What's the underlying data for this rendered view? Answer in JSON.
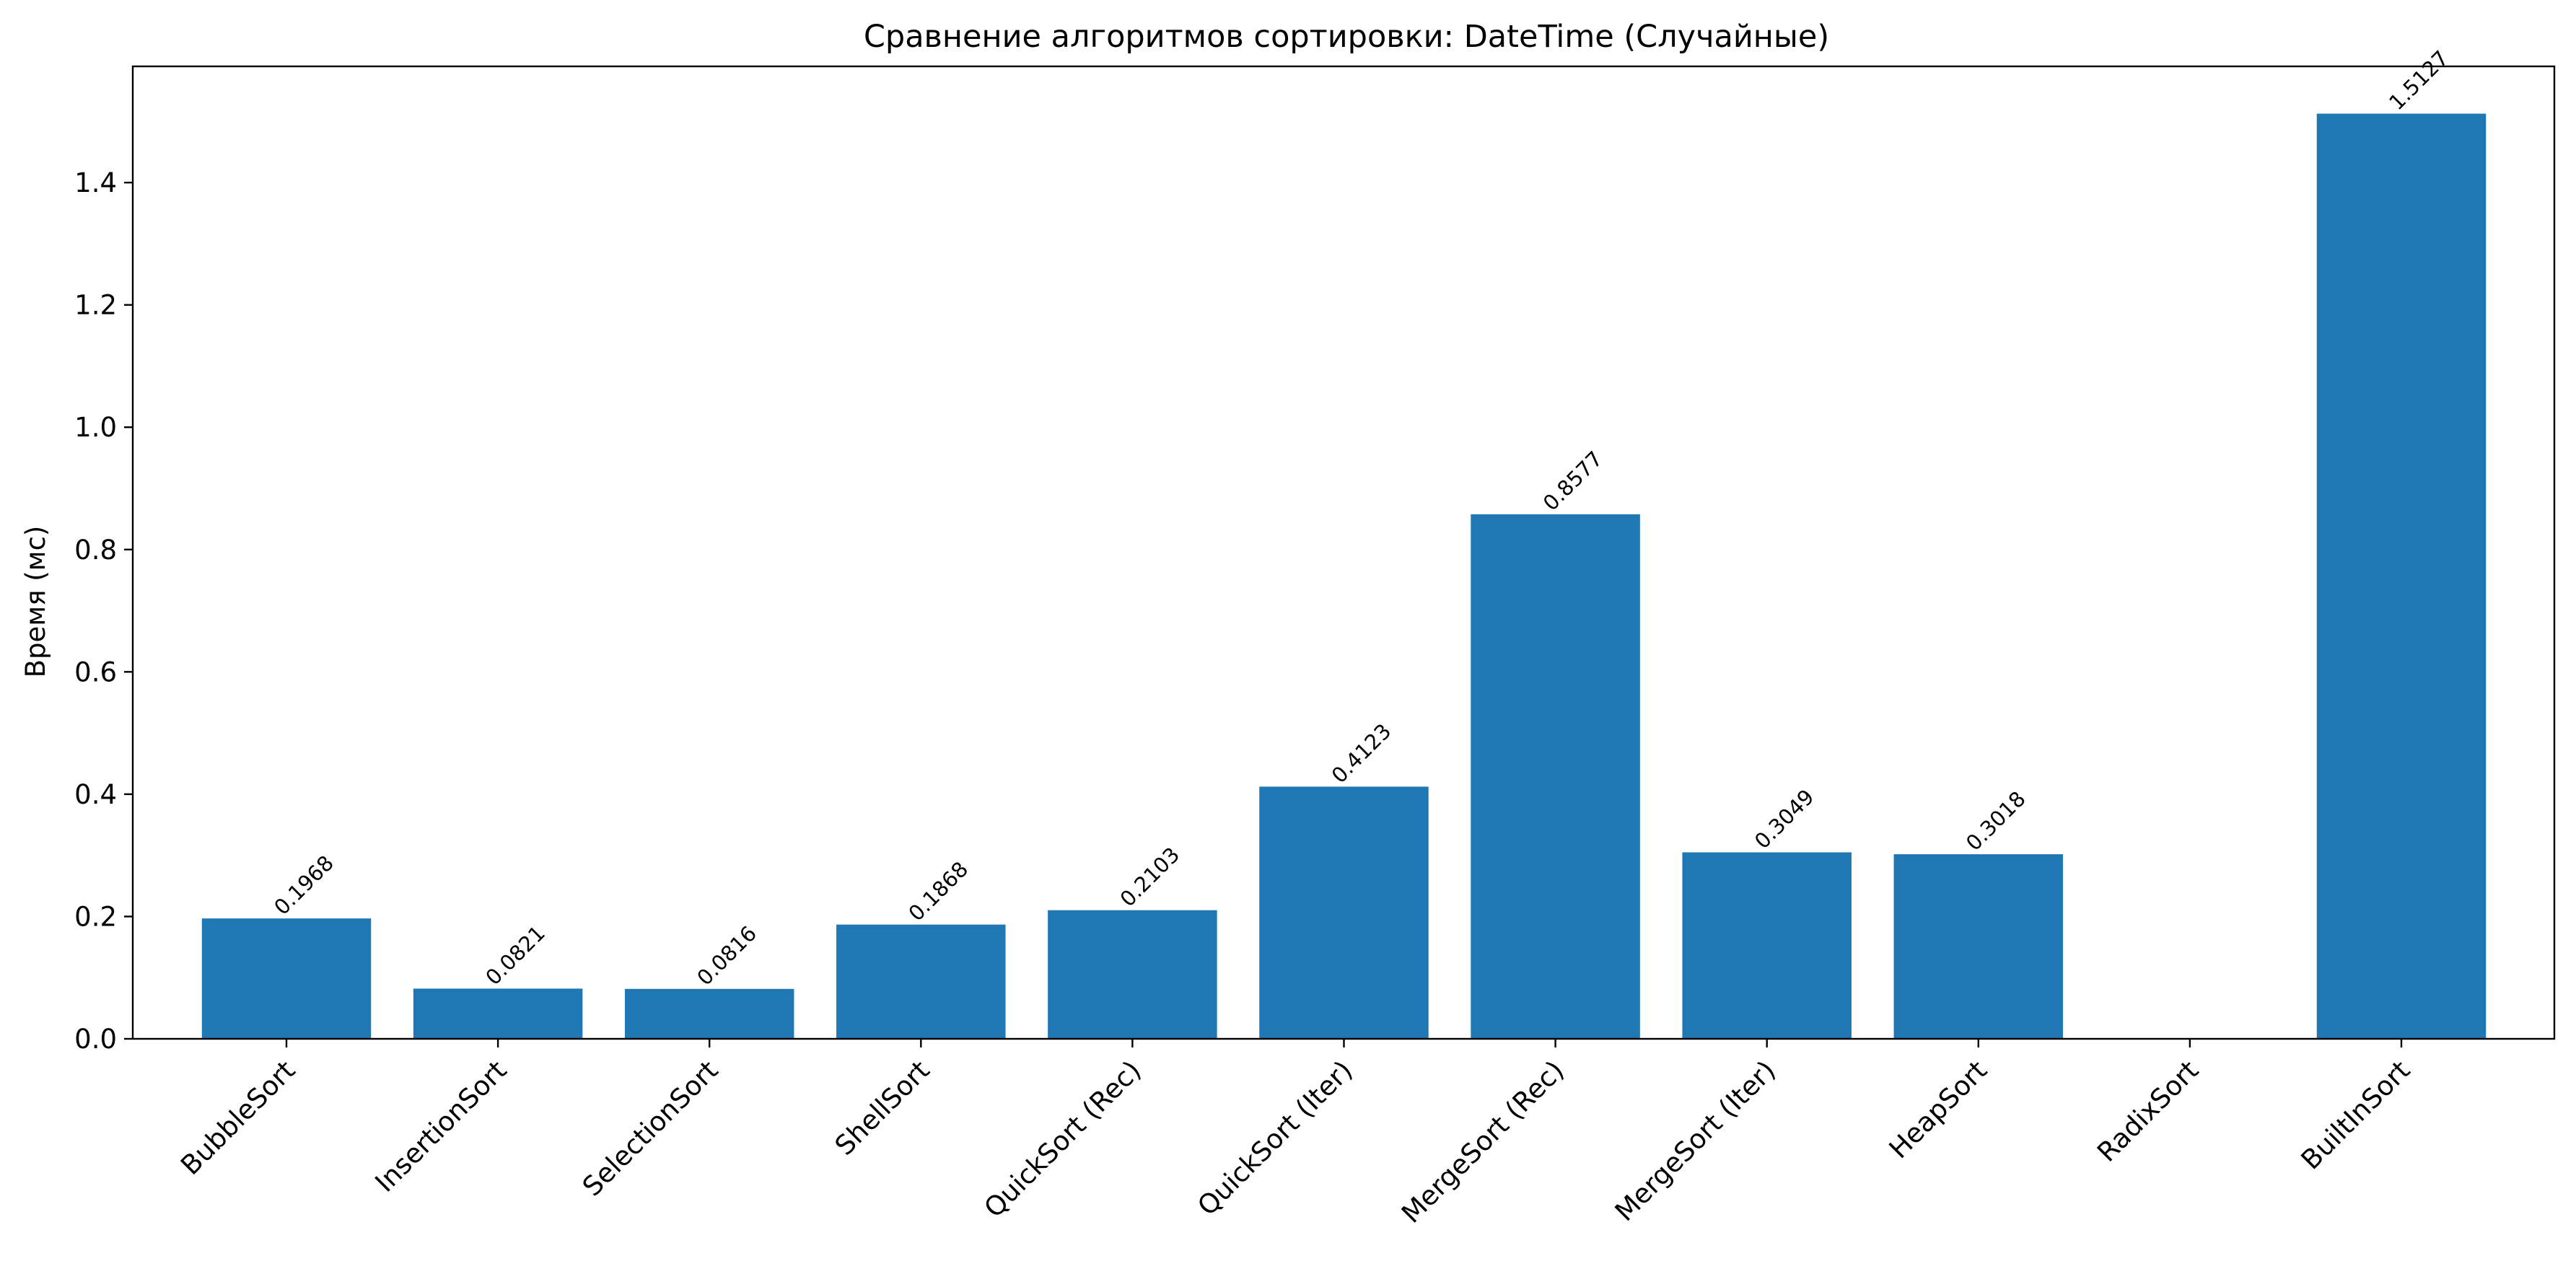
{
  "chart_data": {
    "type": "bar",
    "title": "Сравнение алгоритмов сортировки: DateTime (Случайные)",
    "xlabel": "",
    "ylabel": "Время (мс)",
    "categories": [
      "BubbleSort",
      "InsertionSort",
      "SelectionSort",
      "ShellSort",
      "QuickSort (Rec)",
      "QuickSort (Iter)",
      "MergeSort (Rec)",
      "MergeSort (Iter)",
      "HeapSort",
      "RadixSort",
      "BuiltInSort"
    ],
    "values": [
      0.1968,
      0.0821,
      0.0816,
      0.1868,
      0.2103,
      0.4123,
      0.8577,
      0.3049,
      0.3018,
      null,
      1.5127
    ],
    "value_labels": [
      "0.1968",
      "0.0821",
      "0.0816",
      "0.1868",
      "0.2103",
      "0.4123",
      "0.8577",
      "0.3049",
      "0.3018",
      "",
      "1.5127"
    ],
    "ylim": [
      0,
      1.59
    ],
    "yticks": [
      0.0,
      0.2,
      0.4,
      0.6,
      0.8,
      1.0,
      1.2,
      1.4
    ],
    "ytick_labels": [
      "0.0",
      "0.2",
      "0.4",
      "0.6",
      "0.8",
      "1.0",
      "1.2",
      "1.4"
    ],
    "bar_color": "#1f77b4",
    "grid": false,
    "legend": "none"
  }
}
